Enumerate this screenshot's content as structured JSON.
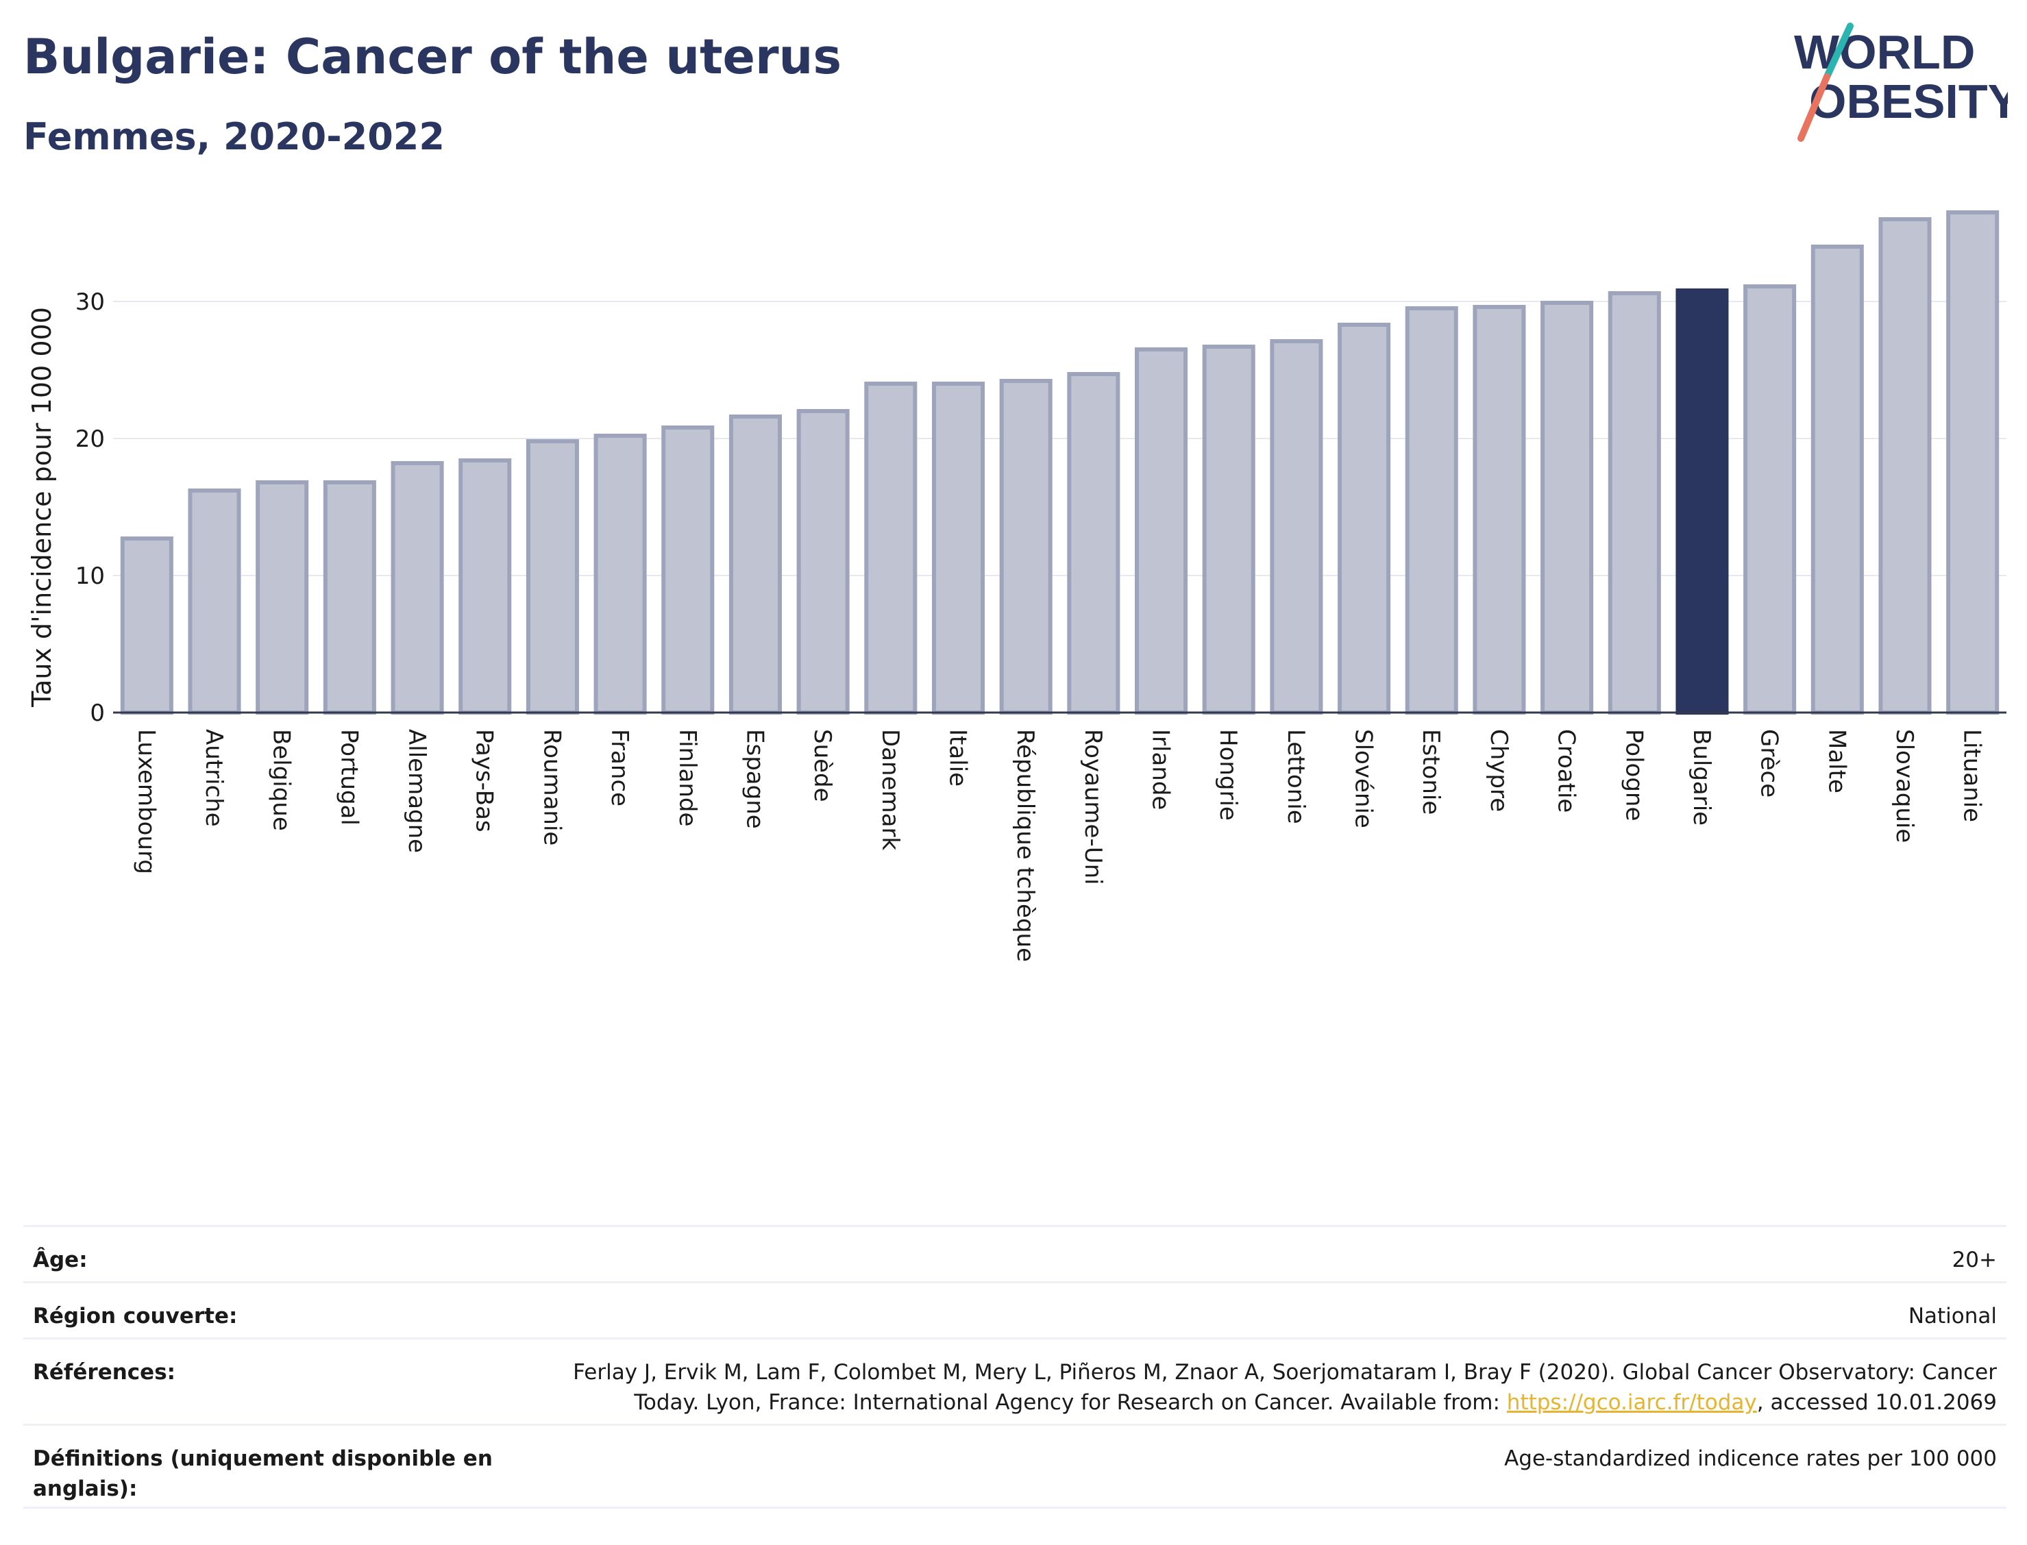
{
  "header": {
    "title": "Bulgarie: Cancer of the uterus",
    "subtitle": "Femmes, 2020-2022"
  },
  "logo": {
    "line1": "WORLD",
    "line2": "OBESITY"
  },
  "colors": {
    "highlight_bar": "#2a3560",
    "bar_fill": "#c0c4d2",
    "bar_stroke": "#9ea4bb",
    "text": "#2a3560",
    "logo_teal": "#2bb5b0",
    "logo_coral": "#e8735f",
    "link": "#e8b32e"
  },
  "chart_data": {
    "type": "bar",
    "title": "Bulgarie: Cancer of the uterus",
    "subtitle": "Femmes, 2020-2022",
    "ylabel": "Taux d'incidence pour 100 000",
    "xlabel": "",
    "ylim": [
      0,
      37
    ],
    "yticks": [
      0,
      10,
      20,
      30
    ],
    "grid": true,
    "highlight": "Bulgarie",
    "categories": [
      "Luxembourg",
      "Autriche",
      "Belgique",
      "Portugal",
      "Allemagne",
      "Pays-Bas",
      "Roumanie",
      "France",
      "Finlande",
      "Espagne",
      "Suède",
      "Danemark",
      "Italie",
      "République tchèque",
      "Royaume-Uni",
      "Irlande",
      "Hongrie",
      "Lettonie",
      "Slovénie",
      "Estonie",
      "Chypre",
      "Croatie",
      "Pologne",
      "Bulgarie",
      "Grèce",
      "Malte",
      "Slovaquie",
      "Lituanie"
    ],
    "values": [
      12.7,
      16.2,
      16.8,
      16.8,
      18.2,
      18.4,
      19.8,
      20.2,
      20.8,
      21.6,
      22.0,
      24.0,
      24.0,
      24.2,
      24.7,
      26.5,
      26.7,
      27.1,
      28.3,
      29.5,
      29.6,
      29.9,
      30.6,
      30.8,
      31.1,
      34.0,
      36.0,
      36.5
    ]
  },
  "meta": {
    "age_label": "Âge:",
    "age_value": "20+",
    "region_label": "Région couverte:",
    "region_value": "National",
    "refs_label": "Références:",
    "refs_line1": "Ferlay J, Ervik M, Lam F, Colombet M, Mery L, Piñeros M, Znaor A, Soerjomataram I, Bray F (2020). Global Cancer Observatory: Cancer",
    "refs_line2_pre": "Today. Lyon, France: International Agency for Research on Cancer. Available from: ",
    "refs_link": "https://gco.iarc.fr/today",
    "refs_line2_post": ", accessed 10.01.2069",
    "defs_label": "Définitions (uniquement disponible en anglais):",
    "defs_value": "Age-standardized indicence rates per 100 000"
  }
}
